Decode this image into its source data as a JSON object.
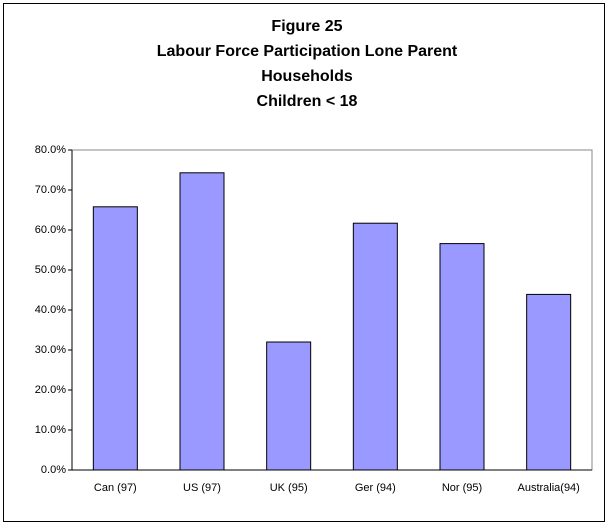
{
  "chart_data": {
    "type": "bar",
    "title": [
      "Figure 25",
      "Labour Force Participation Lone Parent",
      "Households",
      "Children < 18"
    ],
    "categories": [
      "Can (97)",
      "US (97)",
      "UK (95)",
      "Ger (94)",
      "Nor (95)",
      "Australia(94)"
    ],
    "values": [
      65.8,
      74.3,
      32.0,
      61.7,
      56.6,
      43.9
    ],
    "color": "#9999ff",
    "ylim": [
      0,
      80
    ],
    "yticks": [
      {
        "value": 0,
        "label": "0.0%"
      },
      {
        "value": 10,
        "label": "10.0%"
      },
      {
        "value": 20,
        "label": "20.0%"
      },
      {
        "value": 30,
        "label": "30.0%"
      },
      {
        "value": 40,
        "label": "40.0%"
      },
      {
        "value": 50,
        "label": "50.0%"
      },
      {
        "value": 60,
        "label": "60.0%"
      },
      {
        "value": 70,
        "label": "70.0%"
      },
      {
        "value": 80,
        "label": "80.0%"
      }
    ],
    "grid": false
  }
}
